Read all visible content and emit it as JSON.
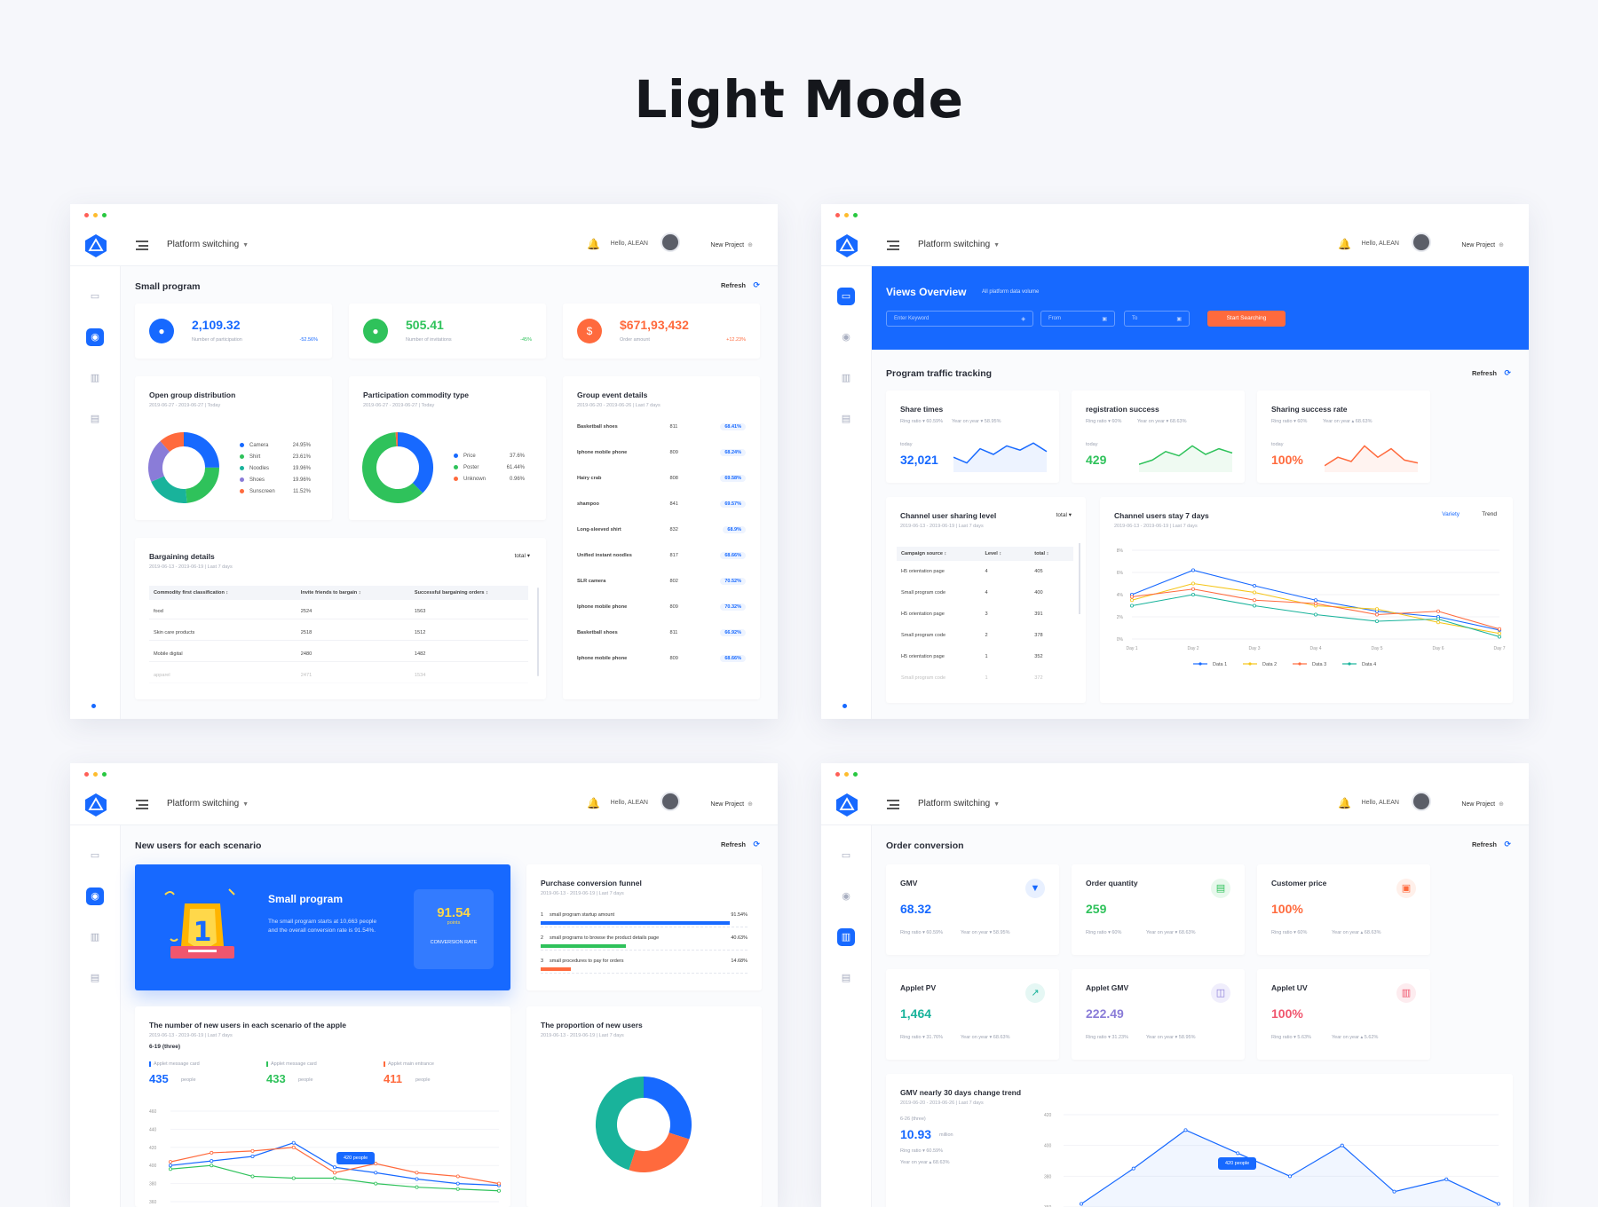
{
  "page_title": "Light Mode",
  "header": {
    "platform": "Platform switching",
    "hello": "Hello, ALEAN",
    "new_project": "New Project"
  },
  "refresh": "Refresh",
  "w1": {
    "section": "Small program",
    "stats": [
      {
        "value": "2,109.32",
        "label": "Number of participation",
        "change": "-52.56%",
        "color": "#1769ff"
      },
      {
        "value": "505.41",
        "label": "Number of invitations",
        "change": "-45%",
        "color": "#2fc25b"
      },
      {
        "value": "$671,93,432",
        "label": "Order amount",
        "change": "+12.23%",
        "color": "#ff6a3d"
      }
    ],
    "open_group": {
      "title": "Open group distribution",
      "date": "2019-06-27 - 2019-06-27 | Today",
      "legend": [
        {
          "n": "Camera",
          "v": "24.95%"
        },
        {
          "n": "Shirt",
          "v": "23.61%"
        },
        {
          "n": "Noodles",
          "v": "19.96%"
        },
        {
          "n": "Shoes",
          "v": "19.96%"
        },
        {
          "n": "Sunscreen",
          "v": "11.52%"
        }
      ]
    },
    "commodity": {
      "title": "Participation commodity type",
      "date": "2019-06-27 - 2019-06-27 | Today",
      "legend": [
        {
          "n": "Price",
          "v": "37.6%"
        },
        {
          "n": "Poster",
          "v": "61.44%"
        },
        {
          "n": "Unknown",
          "v": "0.96%"
        }
      ]
    },
    "group_event": {
      "title": "Group event details",
      "date": "2019-06-20 - 2019-06-26 | Last 7 days",
      "rows": [
        {
          "n": "Basketball shoes",
          "c": "811",
          "p": "68.41%"
        },
        {
          "n": "Iphone mobile phone",
          "c": "809",
          "p": "68.24%"
        },
        {
          "n": "Hairy crab",
          "c": "808",
          "p": "69.58%"
        },
        {
          "n": "shampoo",
          "c": "841",
          "p": "69.57%"
        },
        {
          "n": "Long-sleeved shirt",
          "c": "832",
          "p": "68.9%"
        },
        {
          "n": "Unified instant noodles",
          "c": "817",
          "p": "68.66%"
        },
        {
          "n": "SLR camera",
          "c": "802",
          "p": "70.52%"
        },
        {
          "n": "Iphone mobile phone",
          "c": "809",
          "p": "70.32%"
        },
        {
          "n": "Basketball shoes",
          "c": "811",
          "p": "66.92%"
        },
        {
          "n": "Iphone mobile phone",
          "c": "809",
          "p": "68.66%"
        }
      ]
    },
    "bargain": {
      "title": "Bargaining details",
      "date": "2019-06-13 - 2019-06-19 | Last 7 days",
      "filter": "total",
      "cols": [
        "Commodity first classification ↕",
        "Invite friends to bargain ↕",
        "Successful bargaining orders ↕"
      ],
      "rows": [
        [
          "food",
          "2524",
          "1563"
        ],
        [
          "Skin care products",
          "2518",
          "1512"
        ],
        [
          "Mobile digital",
          "2480",
          "1482"
        ],
        [
          "apparel",
          "2471",
          "1534"
        ]
      ]
    }
  },
  "w2": {
    "banner": {
      "title": "Views Overview",
      "sub": "All platform data volume",
      "keyword": "Enter Keyword",
      "from": "From",
      "to": "To",
      "button": "Start Searching"
    },
    "section": "Program traffic tracking",
    "tracks": [
      {
        "title": "Share times",
        "ring": "Ring ratio ▾ 60.59%",
        "yoy": "Year on year ▾ 58.95%",
        "today": "today",
        "value": "32,021",
        "color": "#1769ff"
      },
      {
        "title": "registration success",
        "ring": "Ring ratio ▾ 60%",
        "yoy": "Year on year ▾ 68.63%",
        "today": "today",
        "value": "429",
        "color": "#2fc25b"
      },
      {
        "title": "Sharing success rate",
        "ring": "Ring ratio ▾ 60%",
        "yoy": "Year on year ▴ 68.63%",
        "today": "today",
        "value": "100%",
        "color": "#ff6a3d"
      }
    ],
    "channel": {
      "title": "Channel user sharing level",
      "date": "2019-06-13 - 2019-06-19 | Last 7 days",
      "filter": "total",
      "cols": [
        "Campaign source ↕",
        "Level ↕",
        "total ↕"
      ],
      "rows": [
        [
          "H5 orientation page",
          "4",
          "405"
        ],
        [
          "Small program code",
          "4",
          "400"
        ],
        [
          "H5 orientation page",
          "3",
          "391"
        ],
        [
          "Small program code",
          "2",
          "378"
        ],
        [
          "H5 orientation page",
          "1",
          "352"
        ],
        [
          "Small program code",
          "1",
          "372"
        ]
      ]
    },
    "stay": {
      "title": "Channel users stay 7 days",
      "date": "2019-06-13 - 2019-06-19 | Last 7 days",
      "tab1": "Variety",
      "tab2": "Trend"
    }
  },
  "w3": {
    "section": "New users for each scenario",
    "hero": {
      "title": "Small program",
      "text": "The small program starts at 10,663 people and the overall conversion rate is 91.54%.",
      "score": "91.54",
      "unit": "points",
      "label": "CONVERSION RATE"
    },
    "funnel": {
      "title": "Purchase conversion funnel",
      "date": "2019-06-13 - 2019-06-19 | Last 7 days",
      "rows": [
        {
          "i": "1",
          "n": "small program startup amount",
          "v": "91.54%",
          "fill": 0.915,
          "color": "#1769ff"
        },
        {
          "i": "2",
          "n": "small programs to browse the product details page",
          "v": "40.63%",
          "fill": 0.41,
          "color": "#2fc25b"
        },
        {
          "i": "3",
          "n": "small procedures to pay for orders",
          "v": "14.68%",
          "fill": 0.147,
          "color": "#ff6a3d"
        }
      ]
    },
    "newusers": {
      "title": "The number of new users in each scenario of the apple",
      "date": "2019-06-13 - 2019-06-19 | Last 7 days",
      "sub": "6-19 (three)",
      "metrics": [
        {
          "label": "Applet message card",
          "value": "435",
          "unit": "people",
          "color": "#1769ff"
        },
        {
          "label": "Applet message card",
          "value": "433",
          "unit": "people",
          "color": "#2fc25b"
        },
        {
          "label": "Applet main entrance",
          "value": "411",
          "unit": "people",
          "color": "#ff6a3d"
        }
      ],
      "tooltip": "420 people"
    },
    "proportion": {
      "title": "The proportion of new users",
      "date": "2019-06-13 - 2019-06-19 | Last 7 days"
    }
  },
  "w4": {
    "section": "Order conversion",
    "cards": [
      {
        "title": "GMV",
        "value": "68.32",
        "ring": "Ring ratio ▾ 60.59%",
        "yoy": "Year on year ▾ 58.95%",
        "color": "#1769ff",
        "bg": "#e8f0ff",
        "icon": "diamond-icon",
        "glyph": "▼"
      },
      {
        "title": "Order quantity",
        "value": "259",
        "ring": "Ring ratio ▾ 60%",
        "yoy": "Year on year ▾ 68.63%",
        "color": "#2fc25b",
        "bg": "#e7f8ec",
        "icon": "clipboard-icon",
        "glyph": "▤"
      },
      {
        "title": "Customer price",
        "value": "100%",
        "ring": "Ring ratio ▾ 60%",
        "yoy": "Year on year ▴ 68.63%",
        "color": "#ff6a3d",
        "bg": "#fff0ea",
        "icon": "wallet-icon",
        "glyph": "▣"
      },
      {
        "title": "Applet PV",
        "value": "1,464",
        "ring": "Ring ratio ▾ 31.76%",
        "yoy": "Year on year ▾ 68.63%",
        "color": "#19b39b",
        "bg": "#e5f7f4",
        "icon": "trend-icon",
        "glyph": "↗"
      },
      {
        "title": "Applet GMV",
        "value": "222.49",
        "ring": "Ring ratio ▾ 31.23%",
        "yoy": "Year on year ▾ 58.95%",
        "color": "#8a7cd8",
        "bg": "#f0eefc",
        "icon": "monitor-icon",
        "glyph": "◫"
      },
      {
        "title": "Applet UV",
        "value": "100%",
        "ring": "Ring ratio ▾ 5.63%",
        "yoy": "Year on year ▴ 5.62%",
        "color": "#f0566e",
        "bg": "#fdecef",
        "icon": "bar-icon",
        "glyph": "▥"
      }
    ],
    "trend": {
      "title": "GMV nearly 30 days change trend",
      "date": "2019-06-20 - 2019-06-26 | Last 7 days",
      "sub": "6-26 (three)",
      "value": "10.93",
      "unit": "million",
      "ring": "Ring ratio ▾ 60.59%",
      "yoy": "Year on year ▴ 68.63%",
      "tooltip": "420 people"
    }
  },
  "chart_data": [
    {
      "type": "pie",
      "title": "Open group distribution",
      "categories": [
        "Camera",
        "Shirt",
        "Noodles",
        "Shoes",
        "Sunscreen"
      ],
      "values": [
        24.95,
        23.61,
        19.96,
        19.96,
        11.52
      ],
      "colors": [
        "#1769ff",
        "#2fc25b",
        "#19b39b",
        "#8a7cd8",
        "#ff6a3d"
      ]
    },
    {
      "type": "pie",
      "title": "Participation commodity type",
      "categories": [
        "Price",
        "Poster",
        "Unknown"
      ],
      "values": [
        37.6,
        61.44,
        0.96
      ],
      "colors": [
        "#1769ff",
        "#2fc25b",
        "#ff6a3d"
      ]
    },
    {
      "type": "line",
      "title": "Channel users stay 7 days",
      "categories": [
        "Day 1",
        "Day 2",
        "Day 3",
        "Day 4",
        "Day 5",
        "Day 6",
        "Day 7"
      ],
      "ylim": [
        0,
        8
      ],
      "yticks": [
        "0%",
        "2%",
        "4%",
        "6%",
        "8%"
      ],
      "series": [
        {
          "name": "Data 1",
          "values": [
            4.0,
            6.2,
            4.8,
            3.5,
            2.5,
            2.0,
            0.8
          ],
          "color": "#1769ff"
        },
        {
          "name": "Data 2",
          "values": [
            3.5,
            5.0,
            4.2,
            3.0,
            2.7,
            1.5,
            0.5
          ],
          "color": "#f5c518"
        },
        {
          "name": "Data 3",
          "values": [
            3.8,
            4.5,
            3.5,
            3.2,
            2.2,
            2.5,
            0.9
          ],
          "color": "#ff6a3d"
        },
        {
          "name": "Data 4",
          "values": [
            3.0,
            4.0,
            3.0,
            2.2,
            1.6,
            1.8,
            0.2
          ],
          "color": "#19b39b"
        }
      ]
    },
    {
      "type": "line",
      "title": "The number of new users in each scenario of the apple",
      "yticks": [
        "360",
        "380",
        "400",
        "420",
        "440",
        "460"
      ],
      "ylim": [
        360,
        460
      ],
      "series": [
        {
          "values": [
            400,
            405,
            410,
            425,
            398,
            392,
            385,
            380,
            378
          ],
          "color": "#1769ff"
        },
        {
          "values": [
            404,
            414,
            416,
            420,
            392,
            402,
            392,
            388,
            380
          ],
          "color": "#ff6a3d"
        },
        {
          "values": [
            396,
            400,
            388,
            386,
            386,
            380,
            376,
            374,
            372
          ],
          "color": "#2fc25b"
        }
      ]
    },
    {
      "type": "pie",
      "title": "The proportion of new users",
      "values": [
        30,
        25,
        45
      ],
      "colors": [
        "#1769ff",
        "#ff6a3d",
        "#19b39b"
      ]
    },
    {
      "type": "line",
      "title": "GMV nearly 30 days change trend",
      "yticks": [
        "360",
        "380",
        "400",
        "420"
      ],
      "ylim": [
        360,
        420
      ],
      "series": [
        {
          "values": [
            362,
            385,
            410,
            395,
            380,
            400,
            370,
            378,
            362
          ],
          "color": "#1769ff"
        }
      ]
    }
  ]
}
